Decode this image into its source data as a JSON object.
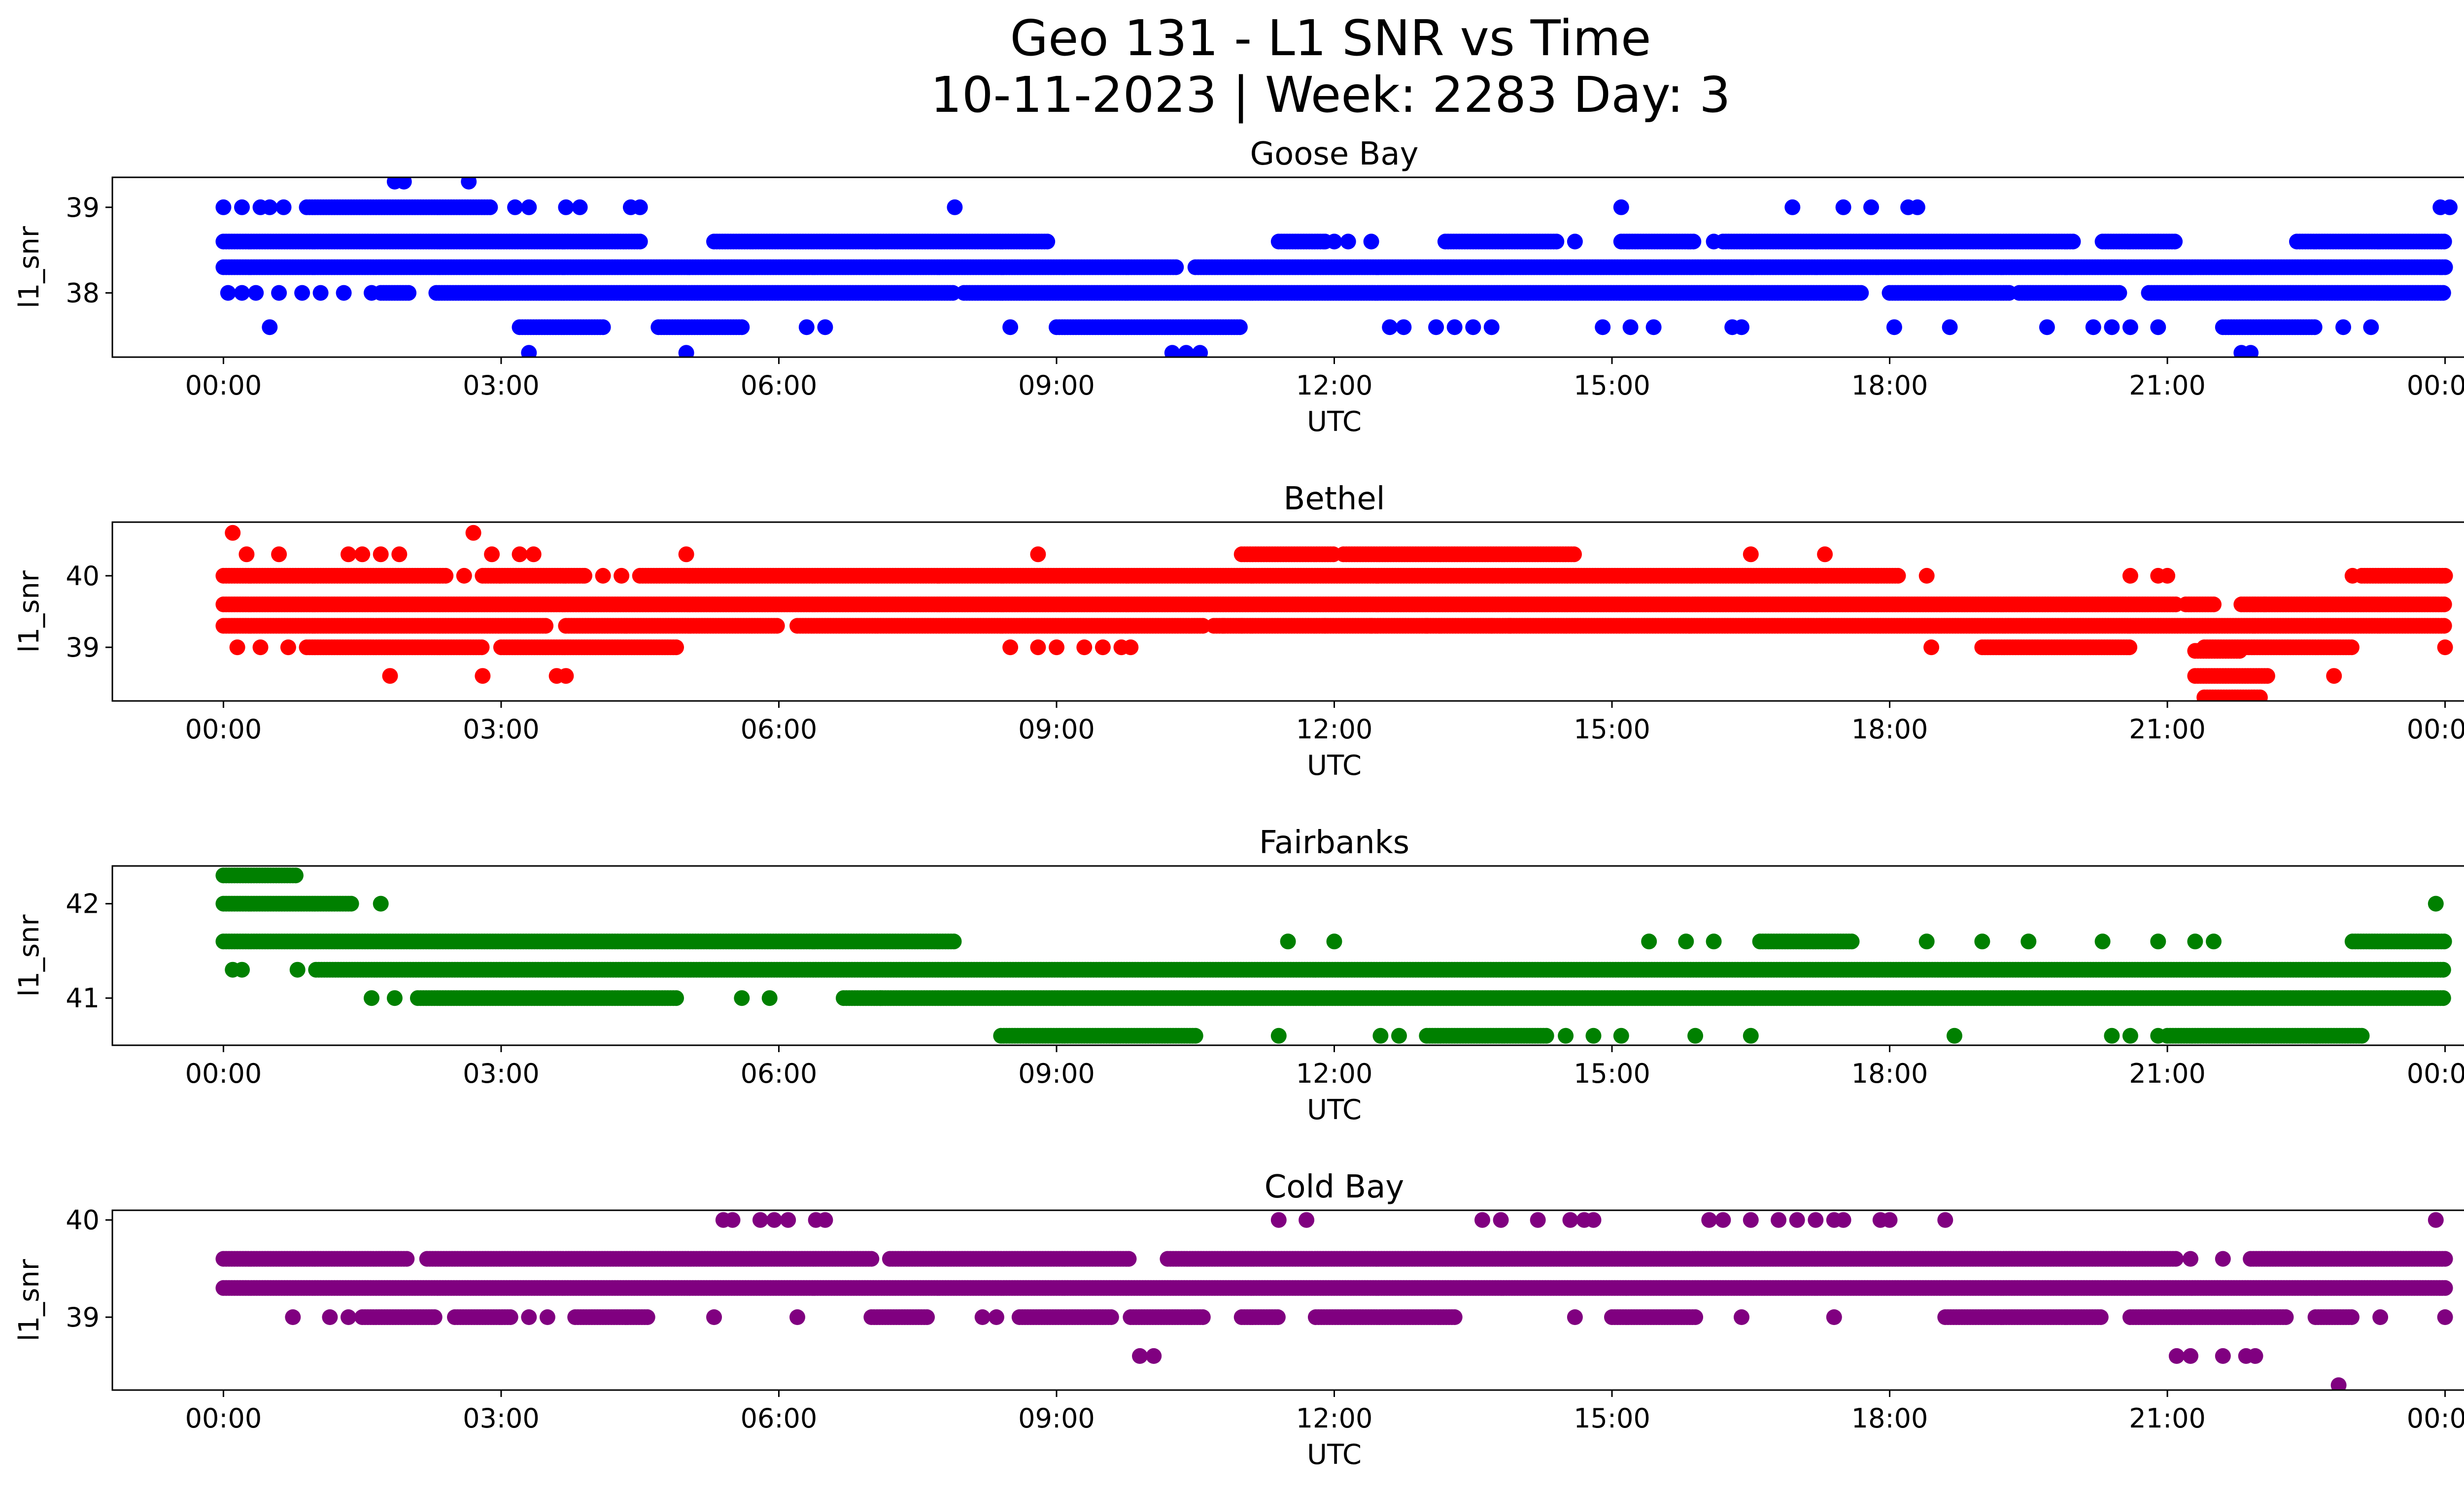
{
  "title_line1": "Geo 131 - L1 SNR vs Time",
  "title_line2": "10-11-2023 | Week: 2283 Day: 3",
  "chart_data": [
    {
      "type": "scatter",
      "title": "Goose Bay",
      "color": "#0000ff",
      "xlabel": "UTC",
      "ylabel": "l1_snr",
      "xlim": [
        -1.2,
        25.2
      ],
      "ylim": [
        37.25,
        39.35
      ],
      "yticks": [
        38,
        39
      ],
      "xticks": [
        "00:00",
        "03:00",
        "06:00",
        "09:00",
        "12:00",
        "15:00",
        "18:00",
        "21:00",
        "00:00"
      ],
      "level_series": [
        {
          "y": 38.3,
          "segments": [
            [
              0.0,
              10.3
            ],
            [
              10.5,
              24.0
            ]
          ]
        },
        {
          "y": 38.6,
          "segments": [
            [
              0.0,
              4.5
            ],
            [
              5.3,
              8.9
            ],
            [
              11.4,
              11.9
            ],
            [
              13.2,
              14.4
            ],
            [
              15.1,
              15.9
            ],
            [
              16.2,
              20.0
            ],
            [
              20.3,
              21.1
            ],
            [
              22.4,
              24.0
            ]
          ]
        },
        {
          "y": 38.0,
          "segments": [
            [
              1.7,
              2.0
            ],
            [
              2.3,
              7.9
            ],
            [
              8.0,
              17.7
            ],
            [
              18.0,
              19.3
            ],
            [
              19.4,
              20.5
            ],
            [
              20.8,
              24.0
            ]
          ]
        },
        {
          "y": 39.0,
          "segments": [
            [
              0.9,
              2.9
            ]
          ]
        },
        {
          "y": 37.6,
          "segments": [
            [
              3.2,
              4.1
            ],
            [
              4.7,
              5.6
            ],
            [
              9.0,
              11.0
            ],
            [
              21.6,
              22.6
            ]
          ]
        }
      ],
      "points": [
        [
          0.0,
          39.0
        ],
        [
          0.2,
          39.0
        ],
        [
          0.4,
          39.0
        ],
        [
          0.5,
          39.0
        ],
        [
          0.65,
          39.0
        ],
        [
          0.05,
          38.0
        ],
        [
          0.2,
          38.0
        ],
        [
          0.35,
          38.0
        ],
        [
          0.6,
          38.0
        ],
        [
          0.85,
          38.0
        ],
        [
          1.05,
          38.0
        ],
        [
          1.3,
          38.0
        ],
        [
          1.6,
          38.0
        ],
        [
          0.5,
          37.6
        ],
        [
          3.15,
          39.0
        ],
        [
          3.3,
          39.0
        ],
        [
          3.7,
          39.0
        ],
        [
          3.85,
          39.0
        ],
        [
          4.4,
          39.0
        ],
        [
          4.5,
          39.0
        ],
        [
          1.85,
          39.3
        ],
        [
          1.95,
          39.3
        ],
        [
          2.65,
          39.3
        ],
        [
          3.3,
          37.3
        ],
        [
          5.0,
          37.3
        ],
        [
          7.9,
          39.0
        ],
        [
          6.3,
          37.6
        ],
        [
          6.5,
          37.6
        ],
        [
          8.5,
          37.6
        ],
        [
          10.25,
          37.3
        ],
        [
          10.4,
          37.3
        ],
        [
          10.55,
          37.3
        ],
        [
          12.0,
          38.6
        ],
        [
          12.15,
          38.6
        ],
        [
          12.4,
          38.6
        ],
        [
          11.9,
          38.6
        ],
        [
          12.6,
          37.6
        ],
        [
          12.75,
          37.6
        ],
        [
          13.1,
          37.6
        ],
        [
          13.3,
          37.6
        ],
        [
          13.5,
          37.6
        ],
        [
          13.7,
          37.6
        ],
        [
          14.6,
          38.6
        ],
        [
          15.1,
          39.0
        ],
        [
          14.9,
          37.6
        ],
        [
          15.2,
          37.6
        ],
        [
          15.45,
          37.6
        ],
        [
          16.1,
          38.6
        ],
        [
          16.3,
          37.6
        ],
        [
          16.4,
          37.6
        ],
        [
          16.95,
          39.0
        ],
        [
          17.5,
          39.0
        ],
        [
          17.8,
          39.0
        ],
        [
          18.2,
          39.0
        ],
        [
          18.3,
          39.0
        ],
        [
          18.05,
          37.6
        ],
        [
          18.65,
          37.6
        ],
        [
          19.7,
          37.6
        ],
        [
          20.2,
          37.6
        ],
        [
          20.4,
          37.6
        ],
        [
          20.6,
          37.6
        ],
        [
          20.9,
          37.6
        ],
        [
          21.8,
          37.3
        ],
        [
          21.9,
          37.3
        ],
        [
          22.9,
          37.6
        ],
        [
          23.2,
          37.6
        ],
        [
          23.95,
          39.0
        ],
        [
          24.05,
          39.0
        ]
      ]
    },
    {
      "type": "scatter",
      "title": "Bethel",
      "color": "#ff0000",
      "xlabel": "UTC",
      "ylabel": "l1_snr",
      "xlim": [
        -1.2,
        25.2
      ],
      "ylim": [
        38.25,
        40.75
      ],
      "yticks": [
        39,
        40
      ],
      "xticks": [
        "00:00",
        "03:00",
        "06:00",
        "09:00",
        "12:00",
        "15:00",
        "18:00",
        "21:00",
        "00:00"
      ],
      "level_series": [
        {
          "y": 39.6,
          "segments": [
            [
              0.0,
              21.1
            ],
            [
              21.2,
              21.5
            ],
            [
              21.8,
              24.0
            ]
          ]
        },
        {
          "y": 39.3,
          "segments": [
            [
              0.0,
              3.5
            ],
            [
              3.7,
              6.0
            ],
            [
              6.2,
              10.6
            ],
            [
              10.7,
              24.0
            ]
          ]
        },
        {
          "y": 40.0,
          "segments": [
            [
              0.0,
              2.4
            ],
            [
              2.8,
              3.9
            ],
            [
              4.5,
              18.1
            ],
            [
              23.1,
              24.0
            ]
          ]
        },
        {
          "y": 39.0,
          "segments": [
            [
              0.9,
              2.8
            ],
            [
              3.0,
              4.9
            ],
            [
              19.0,
              20.6
            ],
            [
              21.4,
              23.0
            ]
          ]
        },
        {
          "y": 40.3,
          "segments": [
            [
              11.0,
              12.0
            ],
            [
              12.1,
              14.6
            ]
          ]
        },
        {
          "y": 38.95,
          "segments": [
            [
              21.3,
              21.8
            ]
          ]
        },
        {
          "y": 38.6,
          "segments": [
            [
              21.3,
              22.1
            ]
          ]
        },
        {
          "y": 38.3,
          "segments": [
            [
              21.4,
              22.0
            ]
          ]
        }
      ],
      "points": [
        [
          0.1,
          40.6
        ],
        [
          2.7,
          40.6
        ],
        [
          0.25,
          40.3
        ],
        [
          0.6,
          40.3
        ],
        [
          1.35,
          40.3
        ],
        [
          1.5,
          40.3
        ],
        [
          1.7,
          40.3
        ],
        [
          1.9,
          40.3
        ],
        [
          2.9,
          40.3
        ],
        [
          3.2,
          40.3
        ],
        [
          3.35,
          40.3
        ],
        [
          5.0,
          40.3
        ],
        [
          8.8,
          40.3
        ],
        [
          0.15,
          39.0
        ],
        [
          0.4,
          39.0
        ],
        [
          0.7,
          39.0
        ],
        [
          1.8,
          38.6
        ],
        [
          2.8,
          38.6
        ],
        [
          3.6,
          38.6
        ],
        [
          3.7,
          38.6
        ],
        [
          3.9,
          40.0
        ],
        [
          4.1,
          40.0
        ],
        [
          4.3,
          40.0
        ],
        [
          2.6,
          40.0
        ],
        [
          8.5,
          39.0
        ],
        [
          8.8,
          39.0
        ],
        [
          9.0,
          39.0
        ],
        [
          9.3,
          39.0
        ],
        [
          9.5,
          39.0
        ],
        [
          9.7,
          39.0
        ],
        [
          9.8,
          39.0
        ],
        [
          10.8,
          39.3
        ],
        [
          11.0,
          39.3
        ],
        [
          11.9,
          39.3
        ],
        [
          12.4,
          39.3
        ],
        [
          13.0,
          39.3
        ],
        [
          13.7,
          39.3
        ],
        [
          13.9,
          39.3
        ],
        [
          16.5,
          40.3
        ],
        [
          17.3,
          40.3
        ],
        [
          18.4,
          40.0
        ],
        [
          18.45,
          39.0
        ],
        [
          20.6,
          40.0
        ],
        [
          20.9,
          40.0
        ],
        [
          21.0,
          40.0
        ],
        [
          22.05,
          39.6
        ],
        [
          22.8,
          38.6
        ],
        [
          23.0,
          40.0
        ],
        [
          24.0,
          39.0
        ]
      ]
    },
    {
      "type": "scatter",
      "title": "Fairbanks",
      "color": "#008000",
      "xlabel": "UTC",
      "ylabel": "l1_snr",
      "xlim": [
        -1.2,
        25.2
      ],
      "ylim": [
        40.5,
        42.4
      ],
      "yticks": [
        41,
        42
      ],
      "xticks": [
        "00:00",
        "03:00",
        "06:00",
        "09:00",
        "12:00",
        "15:00",
        "18:00",
        "21:00",
        "00:00"
      ],
      "level_series": [
        {
          "y": 41.6,
          "segments": [
            [
              0.0,
              7.9
            ]
          ]
        },
        {
          "y": 41.3,
          "segments": [
            [
              1.0,
              24.0
            ]
          ]
        },
        {
          "y": 41.0,
          "segments": [
            [
              2.1,
              4.9
            ],
            [
              6.7,
              24.0
            ]
          ]
        },
        {
          "y": 42.0,
          "segments": [
            [
              0.0,
              1.4
            ]
          ]
        },
        {
          "y": 42.3,
          "segments": [
            [
              0.0,
              0.8
            ]
          ]
        },
        {
          "y": 40.6,
          "segments": [
            [
              8.4,
              10.5
            ],
            [
              13.0,
              14.3
            ],
            [
              21.0,
              23.1
            ]
          ]
        },
        {
          "y": 41.6,
          "segments": [
            [
              16.6,
              17.6
            ],
            [
              23.0,
              24.0
            ]
          ]
        }
      ],
      "points": [
        [
          0.1,
          41.3
        ],
        [
          0.2,
          41.3
        ],
        [
          0.8,
          41.3
        ],
        [
          1.7,
          42.0
        ],
        [
          1.6,
          41.0
        ],
        [
          1.85,
          41.0
        ],
        [
          5.6,
          41.0
        ],
        [
          5.9,
          41.0
        ],
        [
          7.1,
          41.0
        ],
        [
          11.4,
          40.6
        ],
        [
          12.5,
          40.6
        ],
        [
          12.7,
          40.6
        ],
        [
          14.5,
          40.6
        ],
        [
          14.8,
          40.6
        ],
        [
          15.1,
          40.6
        ],
        [
          15.9,
          40.6
        ],
        [
          16.5,
          40.6
        ],
        [
          18.7,
          40.6
        ],
        [
          20.4,
          40.6
        ],
        [
          20.6,
          40.6
        ],
        [
          20.9,
          40.6
        ],
        [
          11.5,
          41.6
        ],
        [
          12.0,
          41.6
        ],
        [
          15.4,
          41.6
        ],
        [
          15.8,
          41.6
        ],
        [
          16.1,
          41.6
        ],
        [
          18.4,
          41.6
        ],
        [
          19.0,
          41.6
        ],
        [
          19.5,
          41.6
        ],
        [
          20.3,
          41.6
        ],
        [
          20.9,
          41.6
        ],
        [
          21.3,
          41.6
        ],
        [
          21.5,
          41.6
        ],
        [
          23.9,
          42.0
        ]
      ]
    },
    {
      "type": "scatter",
      "title": "Cold Bay",
      "color": "#800080",
      "xlabel": "UTC",
      "ylabel": "l1_snr",
      "xlim": [
        -1.2,
        25.2
      ],
      "ylim": [
        38.25,
        40.1
      ],
      "yticks": [
        39,
        40
      ],
      "xticks": [
        "00:00",
        "03:00",
        "06:00",
        "09:00",
        "12:00",
        "15:00",
        "18:00",
        "21:00",
        "00:00"
      ],
      "level_series": [
        {
          "y": 39.3,
          "segments": [
            [
              0.0,
              24.0
            ]
          ]
        },
        {
          "y": 39.6,
          "segments": [
            [
              0.0,
              2.0
            ],
            [
              2.2,
              7.0
            ],
            [
              7.2,
              9.8
            ],
            [
              10.2,
              21.1
            ],
            [
              21.9,
              24.0
            ]
          ]
        },
        {
          "y": 39.0,
          "segments": [
            [
              1.5,
              2.3
            ],
            [
              2.5,
              3.1
            ],
            [
              3.8,
              4.6
            ],
            [
              7.0,
              7.6
            ],
            [
              8.6,
              9.6
            ],
            [
              9.8,
              10.6
            ],
            [
              11.0,
              11.4
            ],
            [
              11.8,
              13.3
            ],
            [
              15.0,
              15.9
            ],
            [
              18.6,
              20.3
            ],
            [
              20.6,
              22.3
            ],
            [
              22.6,
              23.0
            ]
          ]
        }
      ],
      "points": [
        [
          0.75,
          39.0
        ],
        [
          1.15,
          39.0
        ],
        [
          1.35,
          39.0
        ],
        [
          3.3,
          39.0
        ],
        [
          3.5,
          39.0
        ],
        [
          5.3,
          39.0
        ],
        [
          6.2,
          39.0
        ],
        [
          8.2,
          39.0
        ],
        [
          8.35,
          39.0
        ],
        [
          14.6,
          39.0
        ],
        [
          16.4,
          39.0
        ],
        [
          17.4,
          39.0
        ],
        [
          23.3,
          39.0
        ],
        [
          24.0,
          39.0
        ],
        [
          5.4,
          40.0
        ],
        [
          5.5,
          40.0
        ],
        [
          5.8,
          40.0
        ],
        [
          5.95,
          40.0
        ],
        [
          6.1,
          40.0
        ],
        [
          6.4,
          40.0
        ],
        [
          6.5,
          40.0
        ],
        [
          11.4,
          40.0
        ],
        [
          11.7,
          40.0
        ],
        [
          13.6,
          40.0
        ],
        [
          13.8,
          40.0
        ],
        [
          14.2,
          40.0
        ],
        [
          14.55,
          40.0
        ],
        [
          14.7,
          40.0
        ],
        [
          14.8,
          40.0
        ],
        [
          16.05,
          40.0
        ],
        [
          16.2,
          40.0
        ],
        [
          16.5,
          40.0
        ],
        [
          16.8,
          40.0
        ],
        [
          17.0,
          40.0
        ],
        [
          17.2,
          40.0
        ],
        [
          17.4,
          40.0
        ],
        [
          17.5,
          40.0
        ],
        [
          17.9,
          40.0
        ],
        [
          18.0,
          40.0
        ],
        [
          18.6,
          40.0
        ],
        [
          23.9,
          40.0
        ],
        [
          9.9,
          38.6
        ],
        [
          10.05,
          38.6
        ],
        [
          21.1,
          38.6
        ],
        [
          21.25,
          38.6
        ],
        [
          21.6,
          38.6
        ],
        [
          21.85,
          38.6
        ],
        [
          21.95,
          38.6
        ],
        [
          22.85,
          38.3
        ],
        [
          21.25,
          39.6
        ],
        [
          21.6,
          39.6
        ]
      ]
    }
  ]
}
